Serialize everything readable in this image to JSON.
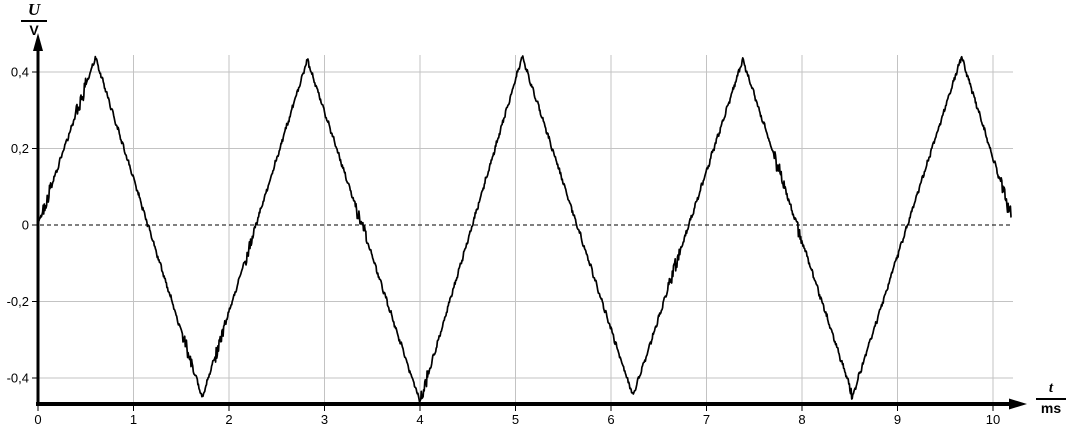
{
  "page": {
    "background_color": "#ffffff",
    "description": "Oscillogram of a noisy triangular voltage signal"
  },
  "colors": {
    "grid": "#c3c3c3",
    "axis": "#000000",
    "trace": "#000000",
    "tick_text": "#000000",
    "zero_line": "#000000"
  },
  "chart_data": {
    "type": "line",
    "title": "",
    "xlabel": "t / ms",
    "ylabel": "U / V",
    "xlabel_numerator": "t",
    "xlabel_denominator": "ms",
    "ylabel_numerator": "U",
    "ylabel_denominator": "V",
    "xlim": [
      0,
      10.33
    ],
    "ylim": [
      -0.47,
      0.445
    ],
    "x_ticks": [
      0,
      1,
      2,
      3,
      4,
      5,
      6,
      7,
      8,
      9,
      10
    ],
    "x_tick_labels": [
      "0",
      "1",
      "2",
      "3",
      "4",
      "5",
      "6",
      "7",
      "8",
      "9",
      "10"
    ],
    "y_ticks": [
      0.4,
      0.2,
      0,
      -0.2,
      -0.4
    ],
    "y_tick_labels": [
      "0,4",
      "0,2",
      "0",
      "-0,2",
      "-0,4"
    ],
    "grid": true,
    "zero_baseline_dashed": true,
    "legend": "none",
    "series": [
      {
        "name": "noisy-triangle-wave",
        "color": "#000000",
        "keypoints": [
          [
            0.0,
            0.0
          ],
          [
            0.6,
            0.438
          ],
          [
            1.72,
            -0.452
          ],
          [
            2.82,
            0.432
          ],
          [
            4.0,
            -0.462
          ],
          [
            5.07,
            0.44
          ],
          [
            6.23,
            -0.448
          ],
          [
            7.38,
            0.432
          ],
          [
            8.53,
            -0.446
          ],
          [
            9.67,
            0.44
          ],
          [
            10.2,
            0.015
          ]
        ],
        "noise_amplitude_v": 0.005,
        "ripple_amplitude_v": 0.0035,
        "ripple_period_ms": 0.055,
        "burst_amplitude_v": 0.014,
        "amplitude_v": 0.44,
        "period_ms": 2.27
      }
    ]
  }
}
